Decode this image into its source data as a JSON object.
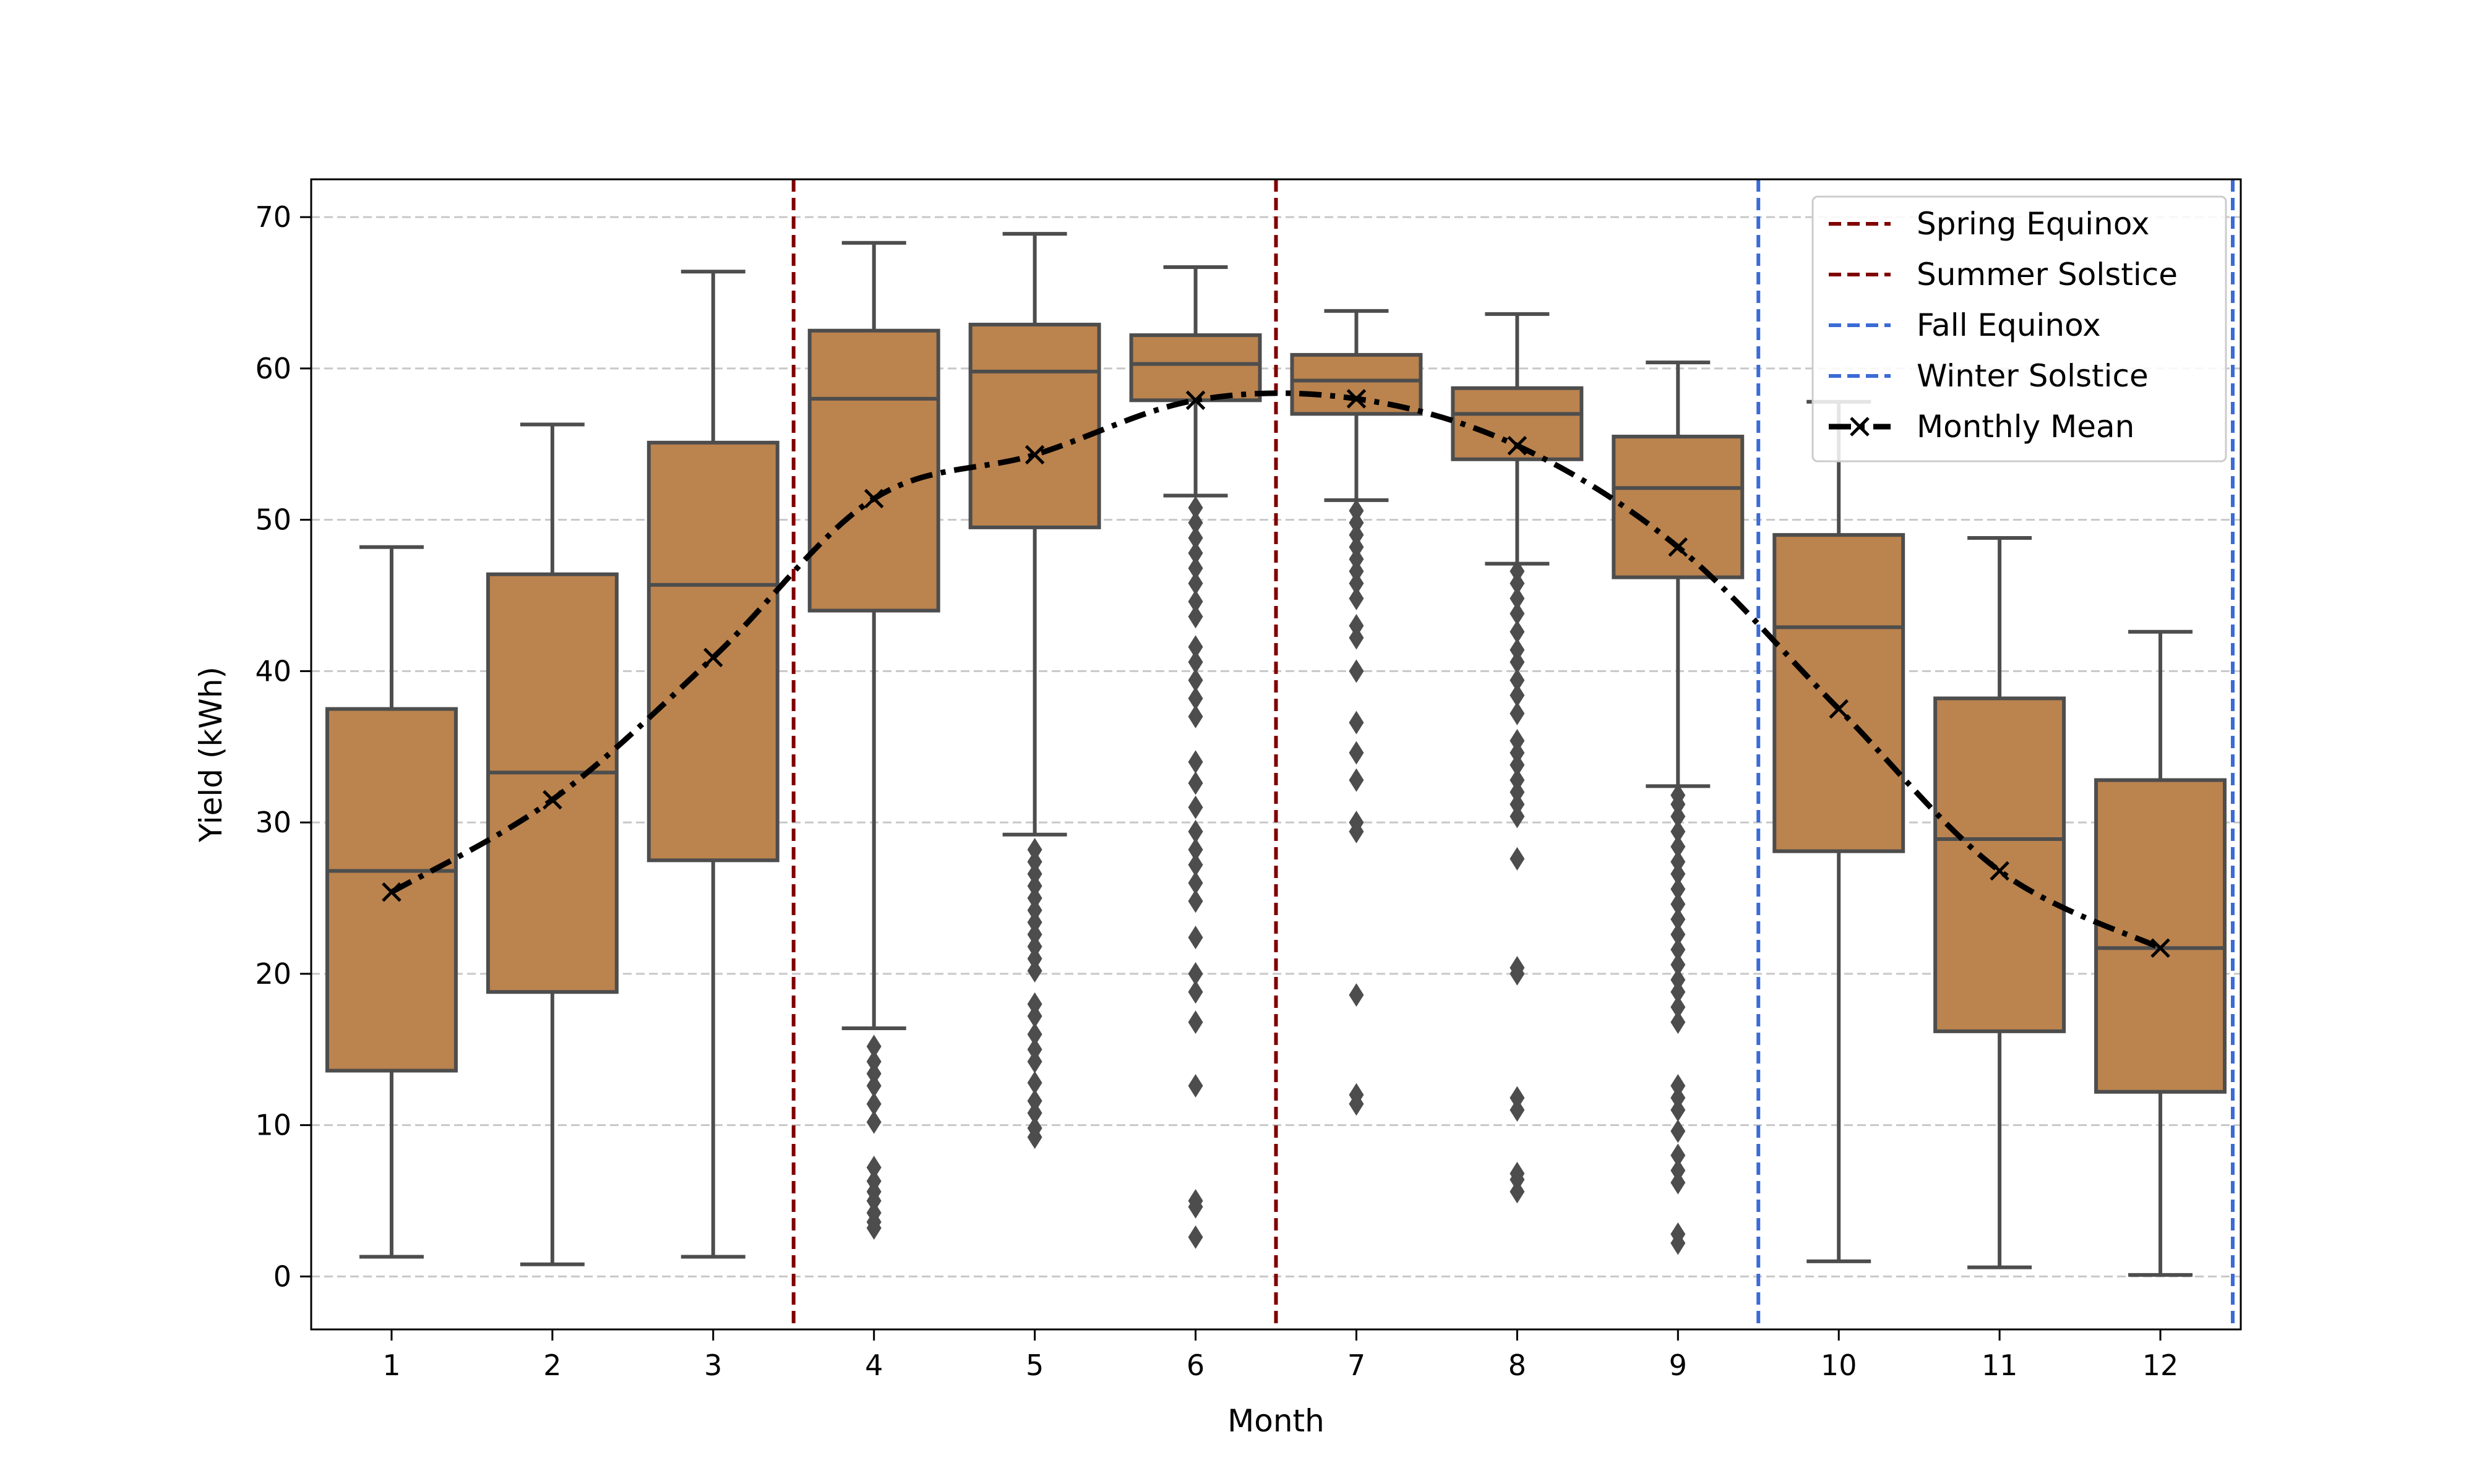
{
  "chart_data": {
    "type": "box",
    "xlabel": "Month",
    "ylabel": "Yield (kWh)",
    "categories": [
      "1",
      "2",
      "3",
      "4",
      "5",
      "6",
      "7",
      "8",
      "9",
      "10",
      "11",
      "12"
    ],
    "ylim": [
      -3.5,
      72.5
    ],
    "yticks": [
      0,
      10,
      20,
      30,
      40,
      50,
      60,
      70
    ],
    "grid": "y-dashed",
    "box_color": "#bb834e",
    "box_edge_color": "#4d4d4d",
    "boxes": [
      {
        "month": "1",
        "whisker_low": 1.3,
        "q1": 13.6,
        "median": 26.8,
        "q3": 37.5,
        "whisker_high": 48.2,
        "outliers": []
      },
      {
        "month": "2",
        "whisker_low": 0.8,
        "q1": 18.8,
        "median": 33.3,
        "q3": 46.4,
        "whisker_high": 56.3,
        "outliers": []
      },
      {
        "month": "3",
        "whisker_low": 1.3,
        "q1": 27.5,
        "median": 45.7,
        "q3": 55.1,
        "whisker_high": 66.4,
        "outliers": []
      },
      {
        "month": "4",
        "whisker_low": 16.4,
        "q1": 44.0,
        "median": 58.0,
        "q3": 62.5,
        "whisker_high": 68.3,
        "outliers": [
          3.2,
          3.6,
          4.2,
          5.0,
          5.6,
          6.3,
          7.2,
          10.2,
          11.4,
          12.6,
          13.4,
          14.2,
          15.2
        ]
      },
      {
        "month": "5",
        "whisker_low": 29.2,
        "q1": 49.5,
        "median": 59.8,
        "q3": 62.9,
        "whisker_high": 68.9,
        "outliers": [
          9.2,
          9.8,
          10.8,
          11.6,
          12.8,
          14.2,
          15.0,
          16.0,
          17.2,
          18.0,
          20.2,
          21.0,
          21.8,
          22.6,
          23.4,
          24.2,
          25.0,
          25.8,
          26.6,
          27.4,
          28.2
        ]
      },
      {
        "month": "6",
        "whisker_low": 51.6,
        "q1": 57.9,
        "median": 60.3,
        "q3": 62.2,
        "whisker_high": 66.7,
        "outliers": [
          2.6,
          4.6,
          5.0,
          12.6,
          16.8,
          18.8,
          20.0,
          22.4,
          24.8,
          26.0,
          27.2,
          28.2,
          29.4,
          31.0,
          32.6,
          34.0,
          37.0,
          38.2,
          39.4,
          40.6,
          41.6,
          43.6,
          44.6,
          45.8,
          46.8,
          47.8,
          48.8,
          49.8,
          50.8
        ]
      },
      {
        "month": "7",
        "whisker_low": 51.3,
        "q1": 57.0,
        "median": 59.2,
        "q3": 60.9,
        "whisker_high": 63.8,
        "outliers": [
          11.4,
          12.0,
          18.6,
          29.4,
          30.0,
          32.8,
          34.6,
          36.6,
          40.0,
          42.2,
          43.0,
          44.8,
          45.8,
          46.6,
          47.4,
          48.2,
          49.0,
          49.8,
          50.6
        ]
      },
      {
        "month": "8",
        "whisker_low": 47.1,
        "q1": 54.0,
        "median": 57.0,
        "q3": 58.7,
        "whisker_high": 63.6,
        "outliers": [
          5.6,
          6.4,
          6.8,
          11.0,
          11.8,
          20.0,
          20.4,
          27.6,
          30.4,
          31.2,
          32.0,
          32.8,
          33.8,
          34.6,
          35.4,
          37.2,
          38.4,
          39.4,
          40.6,
          41.4,
          42.6,
          43.8,
          44.8,
          45.8,
          46.6
        ]
      },
      {
        "month": "9",
        "whisker_low": 32.4,
        "q1": 46.2,
        "median": 52.1,
        "q3": 55.5,
        "whisker_high": 60.4,
        "outliers": [
          2.2,
          2.8,
          6.2,
          7.0,
          8.0,
          9.6,
          11.0,
          11.8,
          12.6,
          16.8,
          17.8,
          18.8,
          19.6,
          20.6,
          21.6,
          22.6,
          23.6,
          24.6,
          25.6,
          26.6,
          27.4,
          28.4,
          29.4,
          30.4,
          31.2,
          31.8
        ]
      },
      {
        "month": "10",
        "whisker_low": 1.0,
        "q1": 28.1,
        "median": 42.9,
        "q3": 49.0,
        "whisker_high": 57.8,
        "outliers": []
      },
      {
        "month": "11",
        "whisker_low": 0.6,
        "q1": 16.2,
        "median": 28.9,
        "q3": 38.2,
        "whisker_high": 48.8,
        "outliers": []
      },
      {
        "month": "12",
        "whisker_low": 0.1,
        "q1": 12.2,
        "median": 21.7,
        "q3": 32.8,
        "whisker_high": 42.6,
        "outliers": []
      }
    ],
    "mean_series": {
      "name": "Monthly Mean",
      "color": "#000000",
      "marker": "x",
      "linestyle": "dash-dot",
      "values": [
        25.4,
        31.5,
        40.9,
        51.4,
        54.3,
        57.9,
        58.0,
        54.9,
        48.2,
        37.5,
        26.8,
        21.7
      ]
    },
    "vlines": [
      {
        "name": "Spring Equinox",
        "x": 3.5,
        "color": "#800000",
        "linestyle": "dashed"
      },
      {
        "name": "Summer Solstice",
        "x": 6.5,
        "color": "#800000",
        "linestyle": "dashed"
      },
      {
        "name": "Fall Equinox",
        "x": 9.5,
        "color": "#3b6bd6",
        "linestyle": "dashed"
      },
      {
        "name": "Winter Solstice",
        "x": 12.45,
        "color": "#3b6bd6",
        "linestyle": "dashed"
      }
    ],
    "legend": {
      "position": "top-right",
      "entries": [
        "Spring Equinox",
        "Summer Solstice",
        "Fall Equinox",
        "Winter Solstice",
        "Monthly Mean"
      ]
    }
  }
}
